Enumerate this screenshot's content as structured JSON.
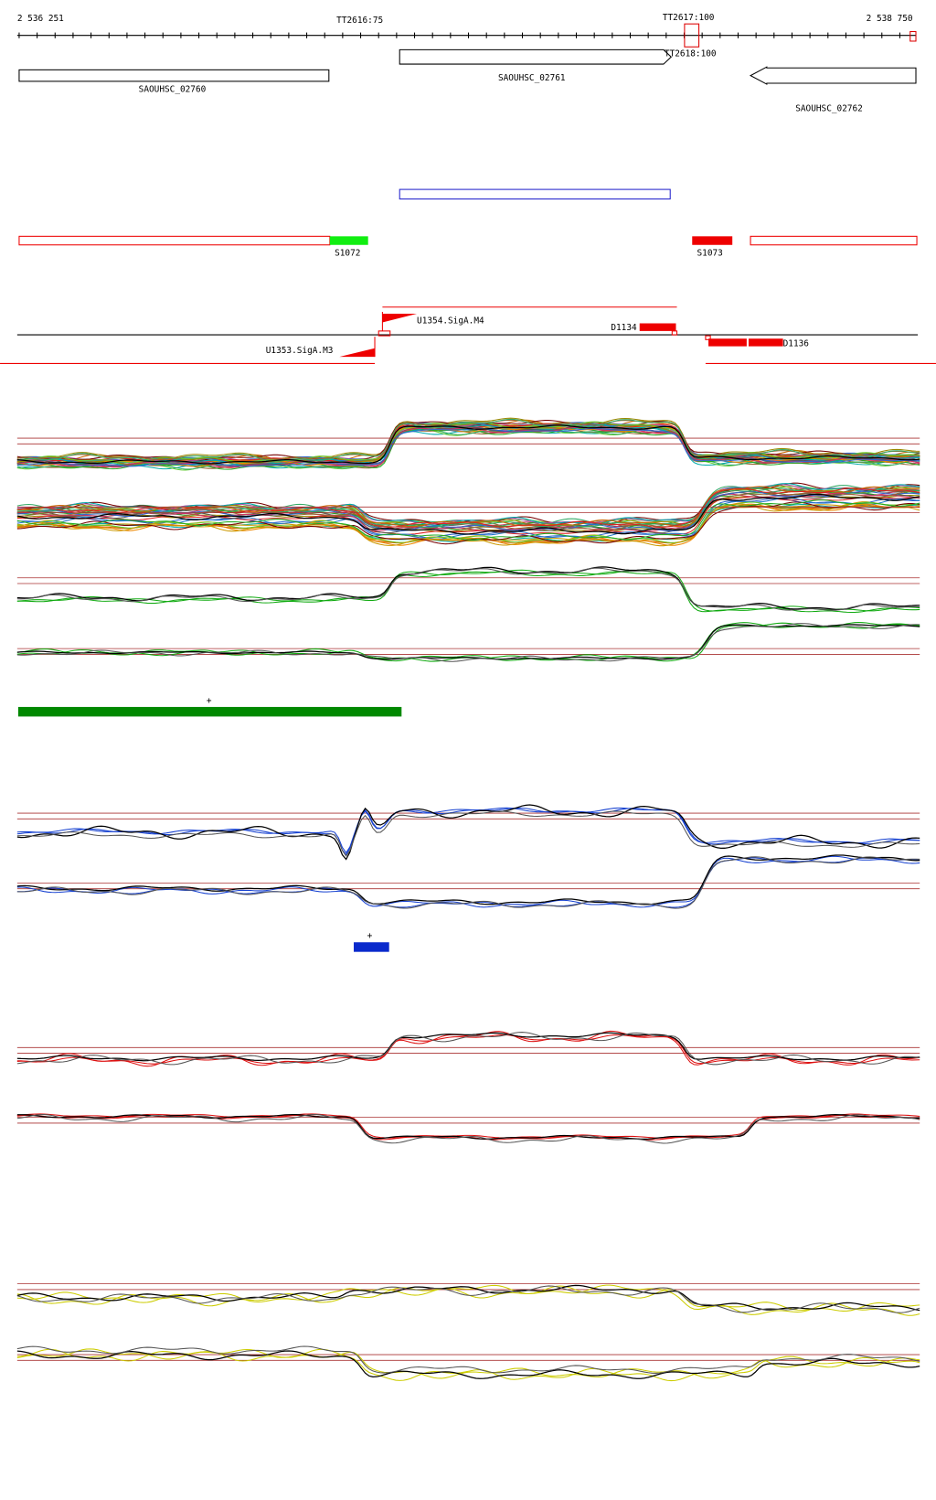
{
  "ruler": {
    "start": "2 536 251",
    "end": "2 538 750",
    "terminators": [
      "TT2616:75",
      "TT2617:100",
      "TT2618:100"
    ]
  },
  "genes": [
    "SAOUHSC_02760",
    "SAOUHSC_02761",
    "SAOUHSC_02762"
  ],
  "segments": [
    "S1072",
    "S1073"
  ],
  "features": [
    "U1354.SigA.M4",
    "D1134",
    "U1353.SigA.M3",
    "D1136"
  ],
  "markers": [
    "+",
    "+"
  ]
}
